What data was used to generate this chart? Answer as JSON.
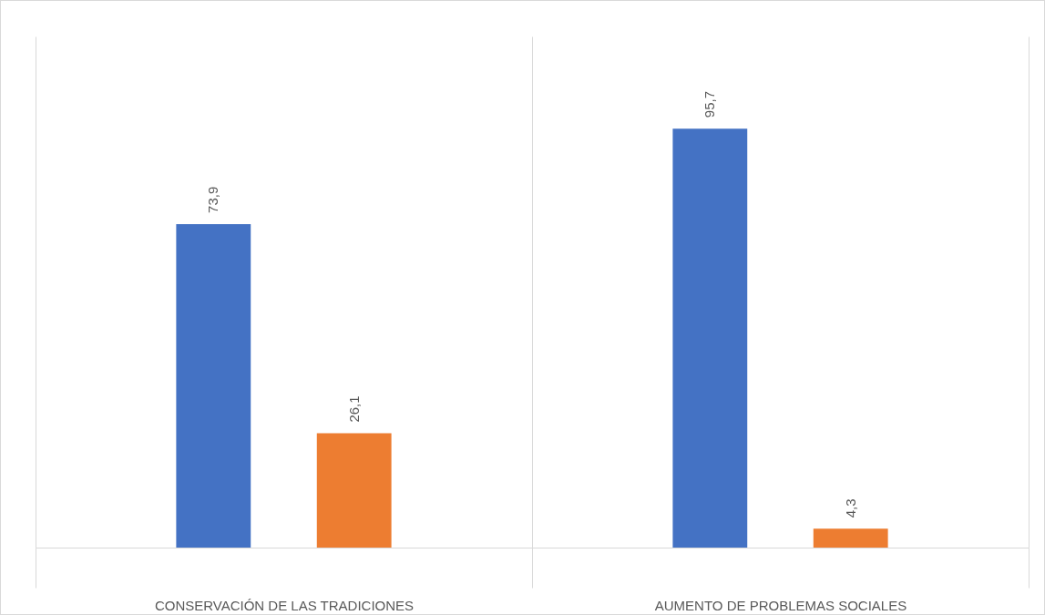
{
  "chart_data": {
    "type": "bar",
    "categories": [
      "CONSERVACIÓN DE LAS TRADICIONES",
      "AUMENTO DE PROBLEMAS SOCIALES"
    ],
    "series": [
      {
        "color": "#4472c4",
        "values": [
          73.9,
          95.7
        ],
        "value_labels": [
          "73,9",
          "95,7"
        ]
      },
      {
        "color": "#ed7d31",
        "values": [
          26.1,
          4.3
        ],
        "value_labels": [
          "26,1",
          "4,3"
        ]
      }
    ],
    "grid": "x"
  }
}
